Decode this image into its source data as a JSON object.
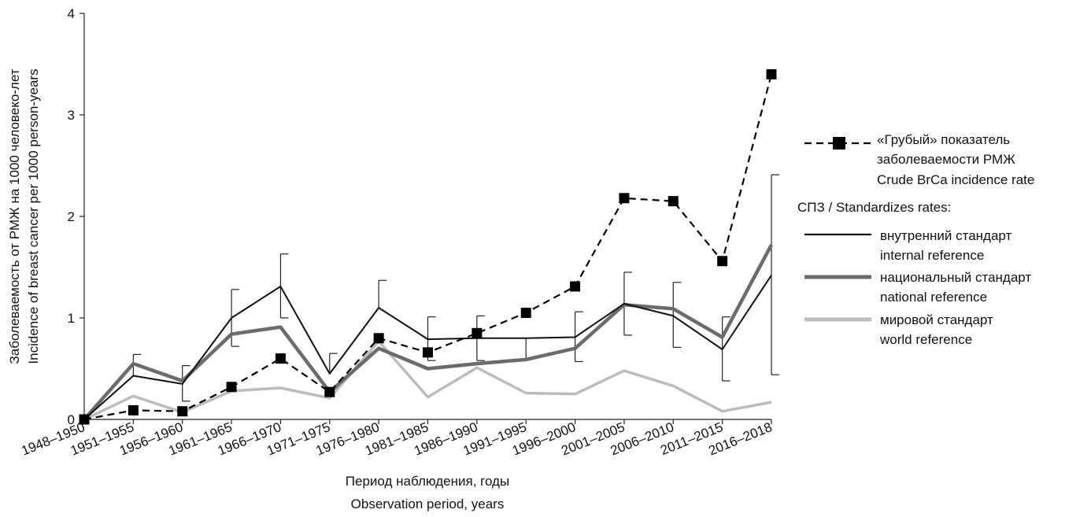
{
  "chart_data": {
    "type": "line",
    "xlabel": "Период наблюдения, годы",
    "xlabel_en": "Observation period, years",
    "ylabel": "Заболеваемость от РМЖ на 1000 человеко-лет",
    "ylabel_en": "Incidence of breast cancer per 1000 person-years",
    "ylim": [
      0,
      4
    ],
    "yticks": [
      "0",
      "1",
      "2",
      "3",
      "4"
    ],
    "grid": false,
    "legend_position": "right",
    "categories": [
      "1948–1950",
      "1951–1955",
      "1956–1960",
      "1961–1965",
      "1966–1970",
      "1971–1975",
      "1976–1980",
      "1981–1985",
      "1986–1990",
      "1991–1995",
      "1996–2000",
      "2001–2005",
      "2006–2010",
      "2011–2015",
      "2016–2018"
    ],
    "legend_header": "СПЗ / Standardizes rates:",
    "series": [
      {
        "name": "«Грубый» показатель заболеваемости РМЖ",
        "name_en": "Crude BrCa incidence rate",
        "style": "dashed-square",
        "color": "#000000",
        "values": [
          0,
          0.09,
          0.08,
          0.32,
          0.6,
          0.27,
          0.8,
          0.66,
          0.85,
          1.05,
          1.31,
          2.18,
          2.15,
          1.56,
          3.4
        ]
      },
      {
        "name": "внутренний стандарт",
        "name_en": "internal reference",
        "style": "solid-thin",
        "color": "#111111",
        "values": [
          0,
          0.43,
          0.35,
          1.0,
          1.31,
          0.45,
          1.1,
          0.79,
          0.8,
          0.8,
          0.81,
          1.14,
          1.02,
          0.69,
          1.42
        ],
        "error_high": [
          null,
          0.64,
          0.53,
          1.28,
          1.63,
          0.65,
          1.37,
          1.01,
          1.02,
          null,
          1.06,
          1.45,
          1.35,
          1.01,
          2.41
        ],
        "error_low": [
          null,
          null,
          0.18,
          0.72,
          1.0,
          null,
          null,
          0.58,
          0.58,
          0.6,
          0.57,
          0.83,
          0.71,
          0.38,
          0.44
        ]
      },
      {
        "name": "национальный стандарт",
        "name_en": "national reference",
        "style": "solid-thick",
        "color": "#6b6b6b",
        "values": [
          0,
          0.55,
          0.38,
          0.84,
          0.91,
          0.27,
          0.7,
          0.5,
          0.55,
          0.59,
          0.7,
          1.13,
          1.09,
          0.81,
          1.72
        ]
      },
      {
        "name": "мировой стандарт",
        "name_en": "world reference",
        "style": "solid-light",
        "color": "#bcbcbc",
        "values": [
          0,
          0.23,
          0.07,
          0.28,
          0.31,
          0.21,
          0.77,
          0.22,
          0.51,
          0.26,
          0.25,
          0.48,
          0.33,
          0.08,
          0.17
        ]
      }
    ]
  }
}
